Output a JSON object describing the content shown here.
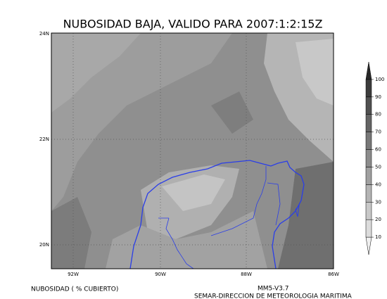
{
  "title": "NUBOSIDAD BAJA, VALIDO PARA 2007:1:2:15Z",
  "map": {
    "lat_labels": [
      "24N",
      "22N",
      "20N"
    ],
    "lon_labels": [
      "92W",
      "90W",
      "88W",
      "86W"
    ]
  },
  "colorbar": {
    "levels": [
      10,
      20,
      30,
      40,
      50,
      60,
      70,
      80,
      90,
      100
    ],
    "colors": [
      "#f0f0f0",
      "#dcdcdc",
      "#c8c8c8",
      "#b4b4b4",
      "#a0a0a0",
      "#8c8c8c",
      "#787878",
      "#646464",
      "#505050",
      "#3c3c3c",
      "#282828"
    ]
  },
  "footer": {
    "units": "NUBOSIDAD ( % CUBIERTO)",
    "model": "MM5-V3.7",
    "credit": "SEMAR-DIRECCION DE METEOROLOGIA MARITIMA"
  }
}
